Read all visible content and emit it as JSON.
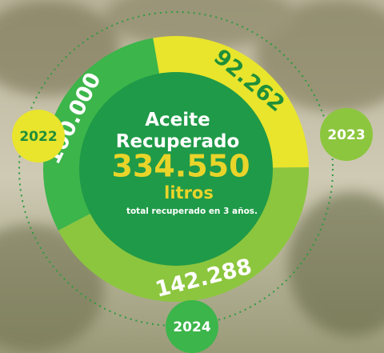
{
  "chart_data": {
    "type": "donut",
    "title": "Aceite Recuperado",
    "categories": [
      "2022",
      "2023",
      "2024"
    ],
    "values": [
      92262,
      142288,
      100000
    ],
    "value_labels": [
      "92.262",
      "142.288",
      "100.000"
    ],
    "colors": [
      "#e8e52c",
      "#8cc63e",
      "#3cb54a"
    ],
    "total": {
      "value": 334550,
      "label": "334.550"
    },
    "unit": "litros",
    "note": "total recuperado en 3 años."
  }
}
